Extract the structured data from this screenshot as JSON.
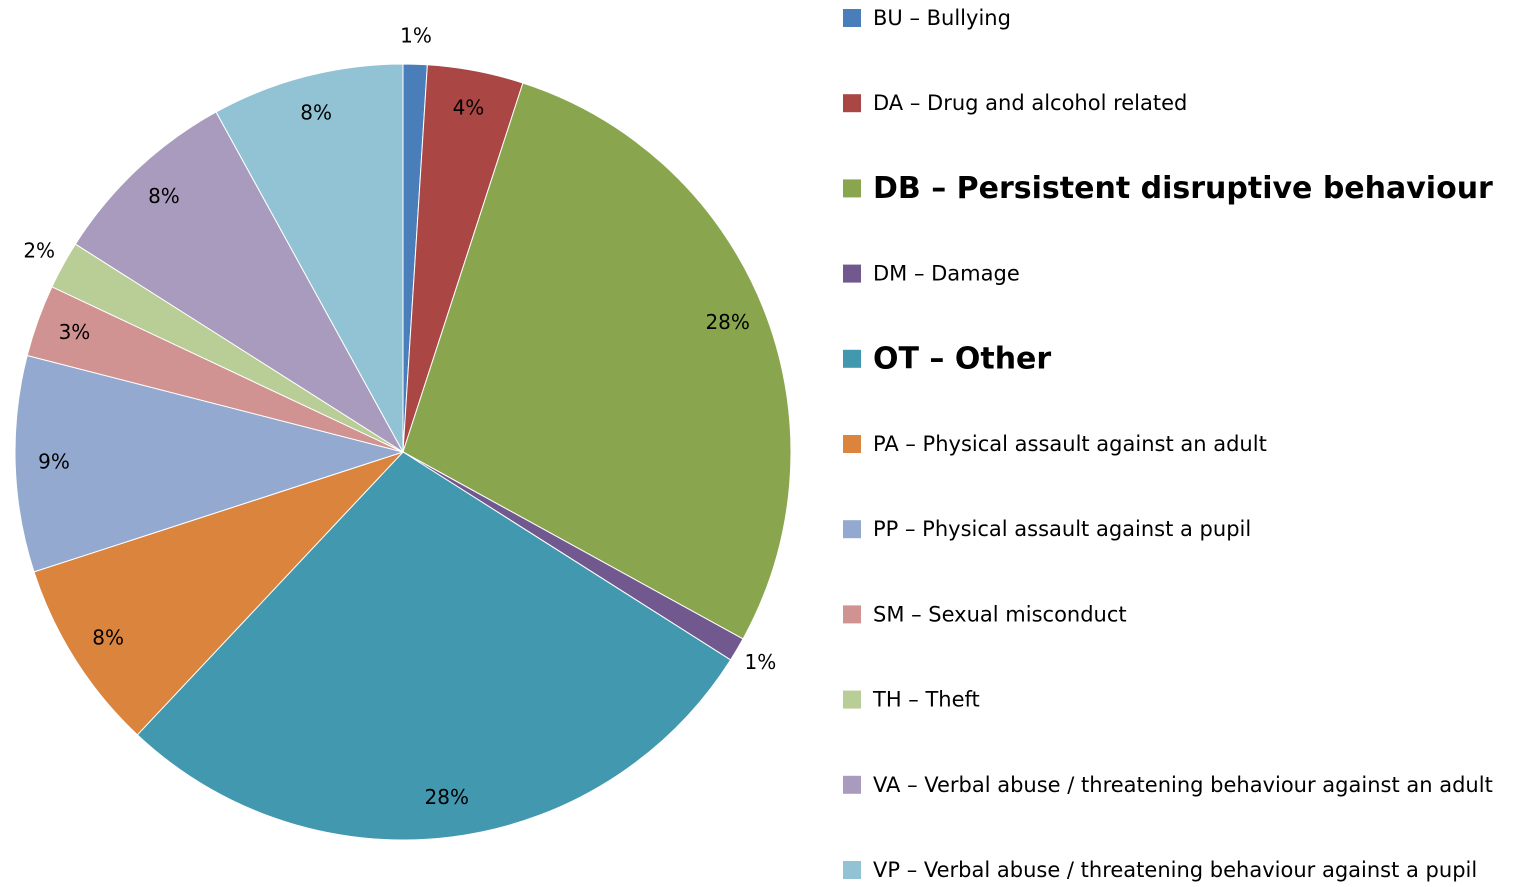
{
  "chart_data": {
    "type": "pie",
    "categories": [
      "BU – Bullying",
      "DA – Drug and alcohol related",
      "DB – Persistent disruptive behaviour",
      "DM – Damage",
      "OT – Other",
      "PA – Physical assault against an adult",
      "PP – Physical assault against a pupil",
      "SM – Sexual misconduct",
      "TH – Theft",
      "VA – Verbal abuse / threatening behaviour against an adult",
      "VP – Verbal abuse / threatening behaviour against a pupil"
    ],
    "values": [
      1,
      4,
      28,
      1,
      28,
      8,
      9,
      3,
      2,
      8,
      8
    ],
    "value_labels": [
      "1%",
      "4%",
      "28%",
      "1%",
      "28%",
      "8%",
      "9%",
      "3%",
      "2%",
      "8%",
      "8%"
    ],
    "colors": [
      "#4a7ebb",
      "#aa4644",
      "#89a54e",
      "#71588f",
      "#4198af",
      "#db843d",
      "#93a9cf",
      "#d19392",
      "#b9cd96",
      "#a99bbd",
      "#92c3d4"
    ],
    "legend_bold": [
      false,
      false,
      true,
      false,
      true,
      false,
      false,
      false,
      false,
      false,
      false
    ],
    "legend": "right"
  }
}
